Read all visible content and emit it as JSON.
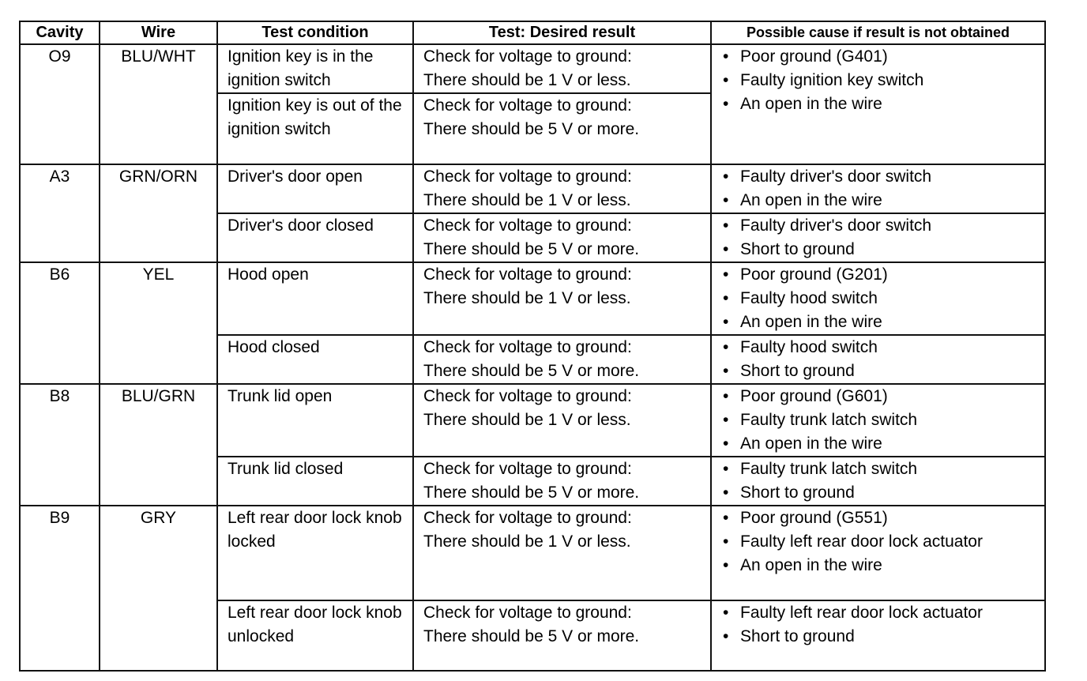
{
  "headers": [
    "Cavity",
    "Wire",
    "Test condition",
    "Test: Desired result",
    "Possible cause if result is not obtained"
  ],
  "groups": [
    {
      "cavity": "O9",
      "wire": "BLU/WHT",
      "causes": [
        "Poor ground (G401)",
        "Faulty ignition key switch",
        "An open in the wire"
      ],
      "rows": [
        {
          "condition": "Ignition key is in the ignition switch",
          "result": [
            "Check for voltage to ground:",
            "There should be 1 V or less."
          ]
        },
        {
          "condition": "Ignition key is out of the ignition switch",
          "result": [
            "Check for voltage to ground:",
            "There should be 5 V or more."
          ]
        }
      ]
    },
    {
      "cavity": "A3",
      "wire": "GRN/ORN",
      "rows": [
        {
          "condition": "Driver's door open",
          "result": [
            "Check for voltage to ground:",
            "There should be 1 V or less."
          ],
          "causes": [
            "Faulty driver's door switch",
            "An open in the wire"
          ]
        },
        {
          "condition": "Driver's door closed",
          "result": [
            "Check for voltage to ground:",
            "There should be 5 V or more."
          ],
          "causes": [
            "Faulty driver's door switch",
            "Short to ground"
          ]
        }
      ]
    },
    {
      "cavity": "B6",
      "wire": "YEL",
      "rows": [
        {
          "condition": "Hood open",
          "result": [
            "Check for voltage to ground:",
            "There should be 1 V or less."
          ],
          "causes": [
            "Poor ground (G201)",
            "Faulty hood switch",
            "An open in the wire"
          ]
        },
        {
          "condition": "Hood closed",
          "result": [
            "Check for voltage to ground:",
            "There should be 5 V or more."
          ],
          "causes": [
            "Faulty hood switch",
            "Short to ground"
          ]
        }
      ]
    },
    {
      "cavity": "B8",
      "wire": "BLU/GRN",
      "rows": [
        {
          "condition": "Trunk lid open",
          "result": [
            "Check for voltage to ground:",
            "There should be 1 V or less."
          ],
          "causes": [
            "Poor ground (G601)",
            "Faulty trunk latch switch",
            "An open in the wire"
          ]
        },
        {
          "condition": "Trunk lid closed",
          "result": [
            "Check for voltage to ground:",
            "There should be 5 V or more."
          ],
          "causes": [
            "Faulty trunk latch switch",
            "Short to ground"
          ]
        }
      ]
    },
    {
      "cavity": "B9",
      "wire": "GRY",
      "rows": [
        {
          "condition": "Left rear door lock knob locked",
          "result": [
            "Check for voltage to ground:",
            "There should be 1 V or less."
          ],
          "causes": [
            "Poor ground (G551)",
            "Faulty left rear door lock actuator",
            "An open in the wire"
          ]
        },
        {
          "condition": "Left rear door lock knob unlocked",
          "result": [
            "Check for voltage to ground:",
            "There should be 5 V or more."
          ],
          "causes": [
            "Faulty left rear door lock actuator",
            "Short to ground"
          ]
        }
      ]
    }
  ]
}
